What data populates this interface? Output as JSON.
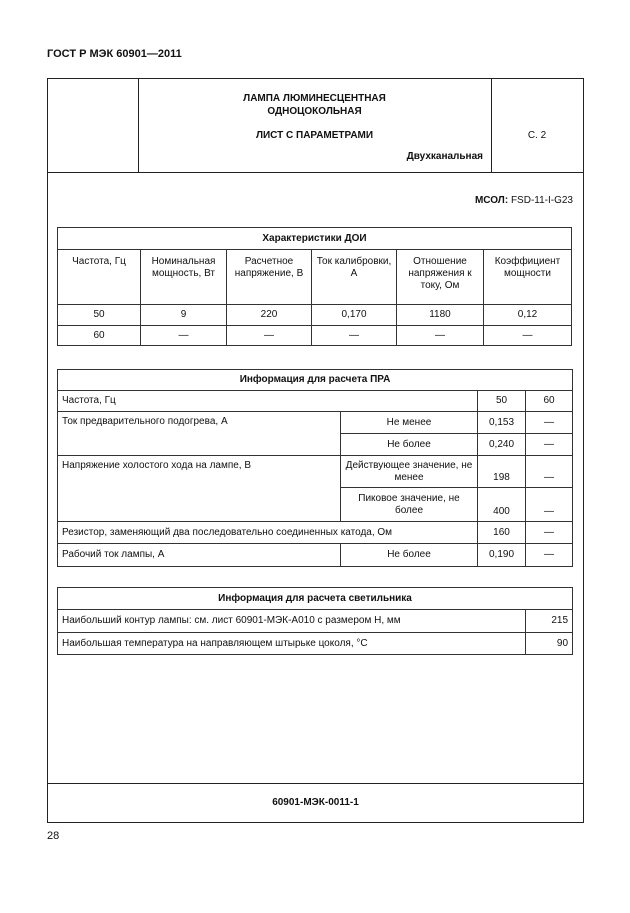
{
  "running_header": "ГОСТ Р МЭК 60901—2011",
  "sheet": {
    "title_line1": "ЛАМПА ЛЮМИНЕСЦЕНТНАЯ",
    "title_line2": "ОДНОЦОКОЛЬНАЯ",
    "subtitle": "ЛИСТ С ПАРАМЕТРАМИ",
    "type": "Двухканальная",
    "page_ref": "С. 2",
    "code_label": "МСОЛ:",
    "code_value": "FSD-11-I-G23",
    "footer_code": "60901-МЭК-0011-1"
  },
  "table1": {
    "title": "Характеристики ДОИ",
    "headers": [
      "Частота, Гц",
      "Номинальная мощность, Вт",
      "Расчетное напряжение, В",
      "Ток калибровки, А",
      "Отношение напряжения к току, Ом",
      "Коэффициент мощности"
    ],
    "rows": [
      [
        "50",
        "9",
        "220",
        "0,170",
        "1180",
        "0,12"
      ],
      [
        "60",
        "—",
        "—",
        "—",
        "—",
        "—"
      ]
    ]
  },
  "table2": {
    "title": "Информация для расчета ПРА",
    "freq_label": "Частота, Гц",
    "freq": [
      "50",
      "60"
    ],
    "preheat_label": "Ток предварительного подогрева, А",
    "preheat": [
      [
        "Не менее",
        "0,153",
        "—"
      ],
      [
        "Не более",
        "0,240",
        "—"
      ]
    ],
    "ocv_label": "Напряжение холостого хода на лампе, В",
    "ocv": [
      [
        "Действующее значение, не менее",
        "198",
        "—"
      ],
      [
        "Пиковое значение, не более",
        "400",
        "—"
      ]
    ],
    "resistor_label": "Резистор, заменяющий два последовательно соединенных катода, Ом",
    "resistor": [
      "160",
      "—"
    ],
    "current_label": "Рабочий ток лампы, А",
    "current": [
      "Не более",
      "0,190",
      "—"
    ]
  },
  "table3": {
    "title": "Информация для расчета светильника",
    "rows": [
      [
        "Наибольший контур лампы: см. лист 60901-МЭК-А010 с размером H, мм",
        "215"
      ],
      [
        "Наибольшая температура на направляющем штырьке цоколя, °С",
        "90"
      ]
    ]
  },
  "page_number": "28"
}
